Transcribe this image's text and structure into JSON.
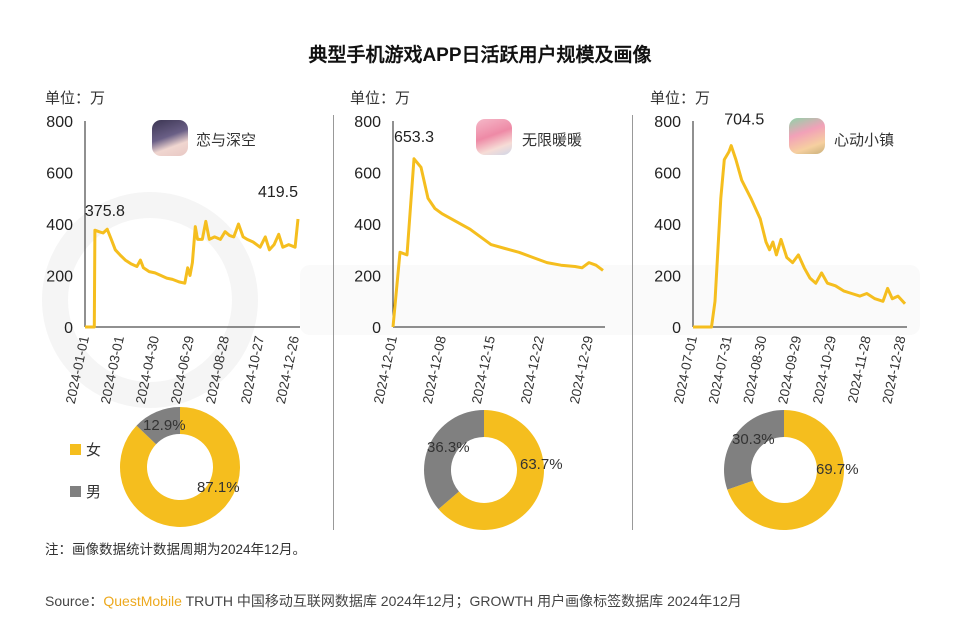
{
  "title": "典型手机游戏APP日活跃用户规模及画像",
  "watermark": "QUESTMOBILE",
  "colors": {
    "line": "#F5BE1E",
    "female": "#F5BE1E",
    "male": "#808080",
    "brand": "#EDA91E"
  },
  "legend": {
    "female": "女",
    "male": "男"
  },
  "note": "注：画像数据统计数据周期为2024年12月。",
  "source": {
    "prefix": "Source：",
    "brand": "QuestMobile",
    "text": " TRUTH 中国移动互联网数据库 2024年12月；GROWTH 用户画像标签数据库 2024年12月"
  },
  "chart_data": [
    {
      "type": "line",
      "app": "恋与深空",
      "app_icon": "game-app-icon",
      "unit": "单位：万",
      "ylim": [
        0,
        800
      ],
      "yticks": [
        "0",
        "200",
        "400",
        "600",
        "800"
      ],
      "xlim": [
        "2024-01-01",
        "2024-12-31"
      ],
      "xticks": [
        "2024-01-01",
        "2024-03-01",
        "2024-04-30",
        "2024-06-29",
        "2024-08-28",
        "2024-10-27",
        "2024-12-26"
      ],
      "annotations": [
        {
          "x": "2024-01-18",
          "label": "375.8"
        },
        {
          "x": "2024-12-31",
          "label": "419.5"
        }
      ],
      "x": [
        "2024-01-01",
        "2024-01-17",
        "2024-01-18",
        "2024-01-25",
        "2024-02-01",
        "2024-02-08",
        "2024-02-15",
        "2024-02-22",
        "2024-03-01",
        "2024-03-10",
        "2024-03-20",
        "2024-03-30",
        "2024-04-05",
        "2024-04-10",
        "2024-04-20",
        "2024-04-30",
        "2024-05-10",
        "2024-05-20",
        "2024-05-30",
        "2024-06-10",
        "2024-06-20",
        "2024-06-25",
        "2024-06-29",
        "2024-07-03",
        "2024-07-08",
        "2024-07-12",
        "2024-07-20",
        "2024-07-26",
        "2024-08-01",
        "2024-08-10",
        "2024-08-20",
        "2024-08-28",
        "2024-09-05",
        "2024-09-12",
        "2024-09-20",
        "2024-09-28",
        "2024-10-05",
        "2024-10-15",
        "2024-10-27",
        "2024-11-05",
        "2024-11-12",
        "2024-11-20",
        "2024-11-28",
        "2024-12-05",
        "2024-12-15",
        "2024-12-26",
        "2024-12-31"
      ],
      "y": [
        0,
        0,
        375.8,
        370,
        365,
        380,
        340,
        300,
        280,
        260,
        245,
        235,
        260,
        230,
        215,
        210,
        200,
        190,
        185,
        175,
        170,
        230,
        200,
        250,
        390,
        340,
        340,
        410,
        340,
        350,
        340,
        370,
        355,
        350,
        400,
        350,
        340,
        330,
        310,
        350,
        300,
        320,
        360,
        310,
        320,
        310,
        419.5
      ],
      "donut": [
        {
          "name": "女",
          "value": 87.1,
          "label": "87.1%"
        },
        {
          "name": "男",
          "value": 12.9,
          "label": "12.9%"
        }
      ]
    },
    {
      "type": "line",
      "app": "无限暖暖",
      "app_icon": "game-app-icon",
      "unit": "单位：万",
      "ylim": [
        0,
        800
      ],
      "yticks": [
        "0",
        "200",
        "400",
        "600",
        "800"
      ],
      "xlim": [
        "2024-12-01",
        "2024-12-31"
      ],
      "xticks": [
        "2024-12-01",
        "2024-12-08",
        "2024-12-15",
        "2024-12-22",
        "2024-12-29"
      ],
      "annotations": [
        {
          "x": "2024-12-04",
          "label": "653.3"
        }
      ],
      "x": [
        "2024-12-01",
        "2024-12-02",
        "2024-12-03",
        "2024-12-04",
        "2024-12-05",
        "2024-12-06",
        "2024-12-07",
        "2024-12-08",
        "2024-12-10",
        "2024-12-12",
        "2024-12-14",
        "2024-12-15",
        "2024-12-17",
        "2024-12-19",
        "2024-12-21",
        "2024-12-23",
        "2024-12-25",
        "2024-12-27",
        "2024-12-28",
        "2024-12-29",
        "2024-12-30",
        "2024-12-31"
      ],
      "y": [
        0,
        290,
        280,
        653.3,
        620,
        500,
        460,
        440,
        410,
        380,
        340,
        320,
        305,
        290,
        270,
        250,
        240,
        235,
        230,
        250,
        240,
        220
      ],
      "donut": [
        {
          "name": "女",
          "value": 63.7,
          "label": "63.7%"
        },
        {
          "name": "男",
          "value": 36.3,
          "label": "36.3%"
        }
      ]
    },
    {
      "type": "line",
      "app": "心动小镇",
      "app_icon": "game-app-icon",
      "unit": "单位：万",
      "ylim": [
        0,
        800
      ],
      "yticks": [
        "0",
        "200",
        "400",
        "600",
        "800"
      ],
      "xlim": [
        "2024-07-01",
        "2024-12-31"
      ],
      "xticks": [
        "2024-07-01",
        "2024-07-31",
        "2024-08-30",
        "2024-09-29",
        "2024-10-29",
        "2024-11-28",
        "2024-12-28"
      ],
      "annotations": [
        {
          "x": "2024-08-03",
          "label": "704.5"
        }
      ],
      "x": [
        "2024-07-01",
        "2024-07-17",
        "2024-07-20",
        "2024-07-25",
        "2024-07-28",
        "2024-08-01",
        "2024-08-03",
        "2024-08-07",
        "2024-08-12",
        "2024-08-20",
        "2024-08-28",
        "2024-09-02",
        "2024-09-05",
        "2024-09-08",
        "2024-09-11",
        "2024-09-15",
        "2024-09-20",
        "2024-09-25",
        "2024-09-30",
        "2024-10-05",
        "2024-10-10",
        "2024-10-15",
        "2024-10-20",
        "2024-10-25",
        "2024-11-01",
        "2024-11-08",
        "2024-11-15",
        "2024-11-22",
        "2024-11-28",
        "2024-12-05",
        "2024-12-12",
        "2024-12-16",
        "2024-12-20",
        "2024-12-25",
        "2024-12-31"
      ],
      "y": [
        0,
        0,
        100,
        500,
        650,
        680,
        704.5,
        650,
        570,
        500,
        420,
        330,
        300,
        330,
        280,
        340,
        270,
        250,
        280,
        230,
        190,
        170,
        210,
        170,
        160,
        140,
        130,
        120,
        130,
        110,
        100,
        150,
        110,
        120,
        90
      ],
      "donut": [
        {
          "name": "女",
          "value": 69.7,
          "label": "69.7%"
        },
        {
          "name": "男",
          "value": 30.3,
          "label": "30.3%"
        }
      ]
    }
  ]
}
